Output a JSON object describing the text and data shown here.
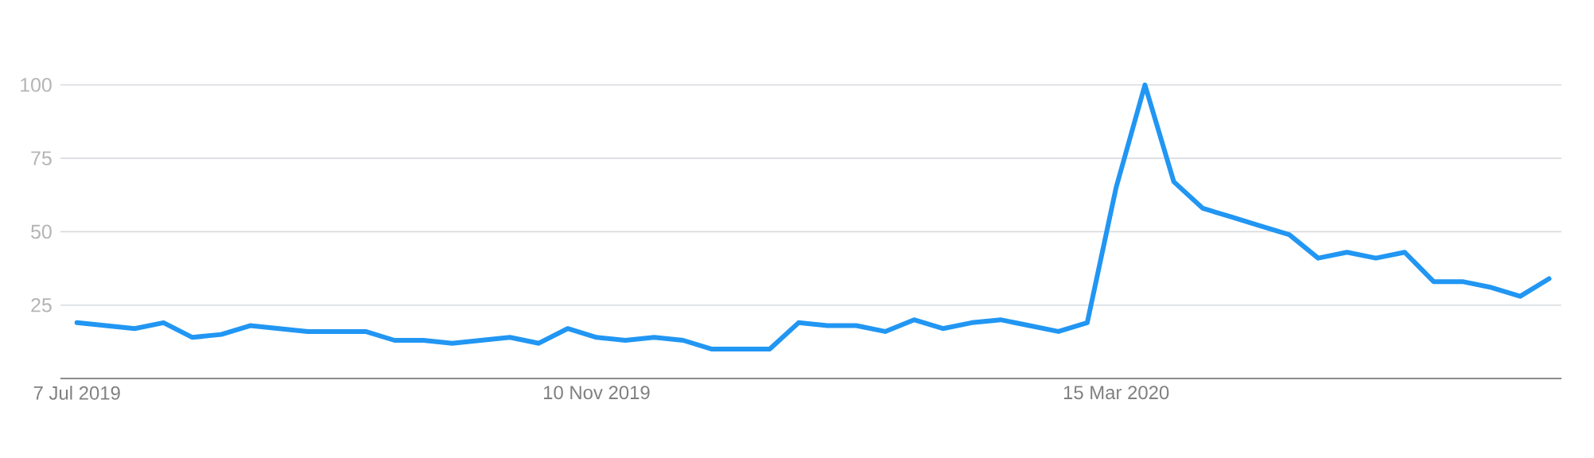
{
  "chart_data": {
    "type": "line",
    "x": [
      "2019-07-07",
      "2019-07-14",
      "2019-07-21",
      "2019-07-28",
      "2019-08-04",
      "2019-08-11",
      "2019-08-18",
      "2019-08-25",
      "2019-09-01",
      "2019-09-08",
      "2019-09-15",
      "2019-09-22",
      "2019-09-29",
      "2019-10-06",
      "2019-10-13",
      "2019-10-20",
      "2019-10-27",
      "2019-11-03",
      "2019-11-10",
      "2019-11-17",
      "2019-11-24",
      "2019-12-01",
      "2019-12-08",
      "2019-12-15",
      "2019-12-22",
      "2019-12-29",
      "2020-01-05",
      "2020-01-12",
      "2020-01-19",
      "2020-01-26",
      "2020-02-02",
      "2020-02-09",
      "2020-02-16",
      "2020-02-23",
      "2020-03-01",
      "2020-03-08",
      "2020-03-15",
      "2020-03-22",
      "2020-03-29",
      "2020-04-05",
      "2020-04-12",
      "2020-04-19",
      "2020-04-26",
      "2020-05-03",
      "2020-05-10",
      "2020-05-17",
      "2020-05-24",
      "2020-05-31",
      "2020-06-07",
      "2020-06-14",
      "2020-06-21",
      "2020-06-28"
    ],
    "values": [
      19,
      18,
      17,
      19,
      14,
      15,
      18,
      17,
      16,
      16,
      16,
      13,
      13,
      12,
      13,
      14,
      12,
      17,
      14,
      13,
      14,
      13,
      10,
      10,
      10,
      19,
      18,
      18,
      16,
      20,
      17,
      19,
      20,
      18,
      16,
      19,
      65,
      100,
      67,
      58,
      55,
      52,
      49,
      41,
      43,
      41,
      43,
      33,
      33,
      31,
      28,
      34
    ],
    "color": "#2196f3",
    "xlim": [
      "2019-07-03",
      "2020-07-01"
    ],
    "xticks": [
      {
        "value": "2019-07-07",
        "label": "7 Jul 2019"
      },
      {
        "value": "2019-11-10",
        "label": "10 Nov 2019"
      },
      {
        "value": "2020-03-15",
        "label": "15 Mar 2020"
      }
    ],
    "ylim": [
      0,
      100
    ],
    "yticks": [
      25,
      50,
      75,
      100
    ],
    "grid": "y"
  }
}
